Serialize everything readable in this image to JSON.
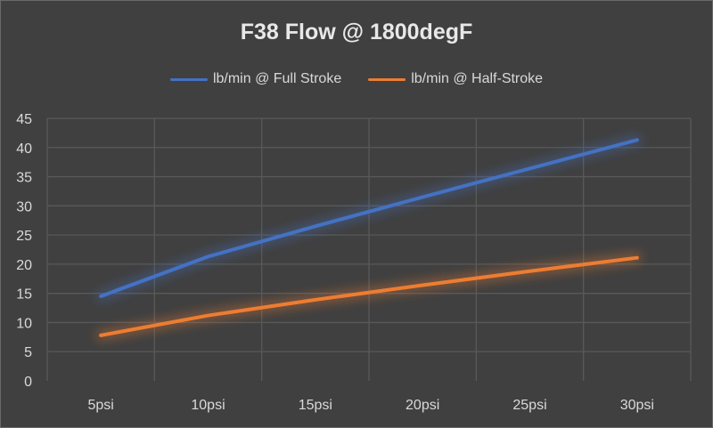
{
  "chart_data": {
    "type": "line",
    "title": "F38 Flow @ 1800degF",
    "xlabel": "",
    "ylabel": "",
    "categories": [
      "5psi",
      "10psi",
      "15psi",
      "20psi",
      "25psi",
      "30psi"
    ],
    "series": [
      {
        "name": "lb/min @ Full Stroke",
        "color": "#4472C4",
        "values": [
          14.5,
          21.3,
          26.5,
          31.5,
          36.4,
          41.3
        ]
      },
      {
        "name": "lb/min @ Half-Stroke",
        "color": "#ED7D31",
        "values": [
          7.8,
          11.2,
          13.9,
          16.4,
          18.8,
          21.1
        ]
      }
    ],
    "ylim": [
      0,
      45
    ],
    "yticks": [
      0,
      5,
      10,
      15,
      20,
      25,
      30,
      35,
      40,
      45
    ],
    "grid": true,
    "legend_position": "top"
  },
  "colors": {
    "background": "#404040",
    "grid": "#595959",
    "text": "#d9d9d9"
  }
}
